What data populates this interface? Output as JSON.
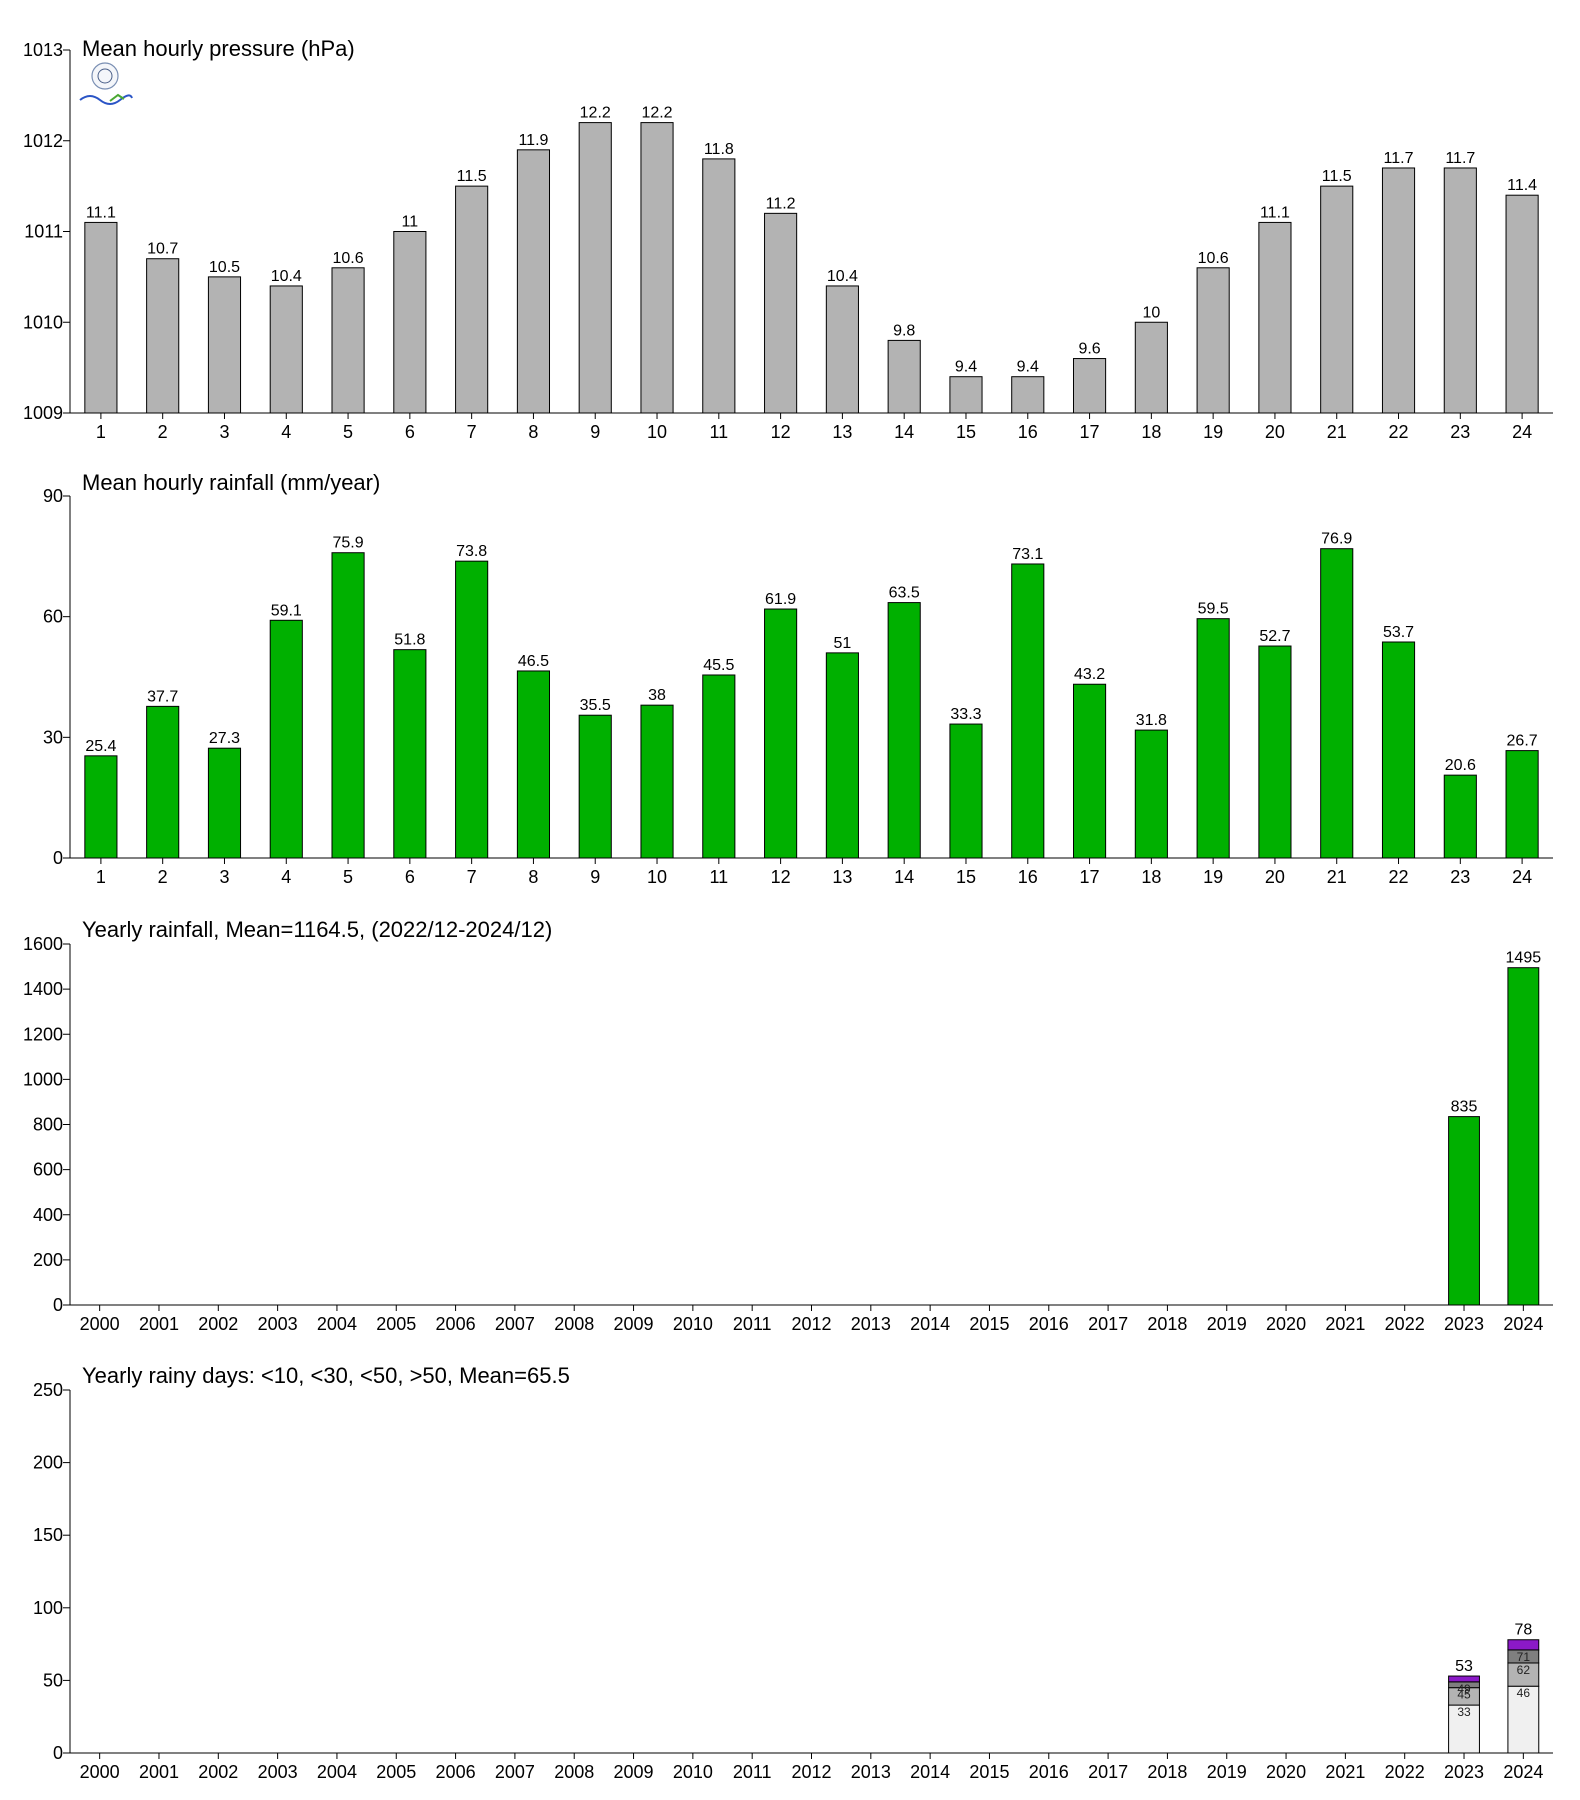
{
  "chart_data": [
    {
      "type": "bar",
      "title": "Mean hourly pressure (hPa)",
      "xlabel": "",
      "ylabel": "",
      "categories": [
        "1",
        "2",
        "3",
        "4",
        "5",
        "6",
        "7",
        "8",
        "9",
        "10",
        "11",
        "12",
        "13",
        "14",
        "15",
        "16",
        "17",
        "18",
        "19",
        "20",
        "21",
        "22",
        "23",
        "24"
      ],
      "values": [
        1011.1,
        1010.7,
        1010.5,
        1010.4,
        1010.6,
        1011,
        1011.5,
        1011.9,
        1012.2,
        1012.2,
        1011.8,
        1011.2,
        1010.4,
        1009.8,
        1009.4,
        1009.4,
        1009.6,
        1010,
        1010.6,
        1011.1,
        1011.5,
        1011.7,
        1011.7,
        1011.4
      ],
      "labels": [
        "11.1",
        "10.7",
        "10.5",
        "10.4",
        "10.6",
        "11",
        "11.5",
        "11.9",
        "12.2",
        "12.2",
        "11.8",
        "11.2",
        "10.4",
        "9.8",
        "9.4",
        "9.4",
        "9.6",
        "10",
        "10.6",
        "11.1",
        "11.5",
        "11.7",
        "11.7",
        "11.4"
      ],
      "ylim": [
        1009,
        1013
      ],
      "yticks": [
        "1009",
        "1010",
        "1011",
        "1012",
        "1013"
      ],
      "grid": false,
      "color": "#b3b3b3"
    },
    {
      "type": "bar",
      "title": "Mean hourly rainfall (mm/year)",
      "xlabel": "",
      "ylabel": "",
      "categories": [
        "1",
        "2",
        "3",
        "4",
        "5",
        "6",
        "7",
        "8",
        "9",
        "10",
        "11",
        "12",
        "13",
        "14",
        "15",
        "16",
        "17",
        "18",
        "19",
        "20",
        "21",
        "22",
        "23",
        "24"
      ],
      "values": [
        25.4,
        37.7,
        27.3,
        59.1,
        75.9,
        51.8,
        73.8,
        46.5,
        35.5,
        38,
        45.5,
        61.9,
        51,
        63.5,
        33.3,
        73.1,
        43.2,
        31.8,
        59.5,
        52.7,
        76.9,
        53.7,
        20.6,
        26.7
      ],
      "labels": [
        "25.4",
        "37.7",
        "27.3",
        "59.1",
        "75.9",
        "51.8",
        "73.8",
        "46.5",
        "35.5",
        "38",
        "45.5",
        "61.9",
        "51",
        "63.5",
        "33.3",
        "73.1",
        "43.2",
        "31.8",
        "59.5",
        "52.7",
        "76.9",
        "53.7",
        "20.6",
        "26.7"
      ],
      "ylim": [
        0,
        90
      ],
      "yticks": [
        "0",
        "30",
        "60",
        "90"
      ],
      "grid": false,
      "color": "#00b000"
    },
    {
      "type": "bar",
      "title": "Yearly rainfall, Mean=1164.5, (2022/12-2024/12)",
      "xlabel": "",
      "ylabel": "",
      "categories": [
        "2000",
        "2001",
        "2002",
        "2003",
        "2004",
        "2005",
        "2006",
        "2007",
        "2008",
        "2009",
        "2010",
        "2011",
        "2012",
        "2013",
        "2014",
        "2015",
        "2016",
        "2017",
        "2018",
        "2019",
        "2020",
        "2021",
        "2022",
        "2023",
        "2024"
      ],
      "values": [
        null,
        null,
        null,
        null,
        null,
        null,
        null,
        null,
        null,
        null,
        null,
        null,
        null,
        null,
        null,
        null,
        null,
        null,
        null,
        null,
        null,
        null,
        null,
        835,
        1495
      ],
      "labels": [
        "",
        "",
        "",
        "",
        "",
        "",
        "",
        "",
        "",
        "",
        "",
        "",
        "",
        "",
        "",
        "",
        "",
        "",
        "",
        "",
        "",
        "",
        "",
        "835",
        "1495"
      ],
      "ylim": [
        0,
        1600
      ],
      "yticks": [
        "0",
        "200",
        "400",
        "600",
        "800",
        "1000",
        "1200",
        "1400",
        "1600"
      ],
      "grid": false,
      "color": "#00b000"
    },
    {
      "type": "bar",
      "stacked": true,
      "title": "Yearly rainy days: <10, <30, <50, >50, Mean=65.5",
      "xlabel": "",
      "ylabel": "",
      "categories": [
        "2000",
        "2001",
        "2002",
        "2003",
        "2004",
        "2005",
        "2006",
        "2007",
        "2008",
        "2009",
        "2010",
        "2011",
        "2012",
        "2013",
        "2014",
        "2015",
        "2016",
        "2017",
        "2018",
        "2019",
        "2020",
        "2021",
        "2022",
        "2023",
        "2024"
      ],
      "cumulative": [
        {
          "year": "2023",
          "levels": [
            33,
            45,
            49,
            53
          ],
          "labels": [
            "33",
            "45",
            "49",
            "53"
          ]
        },
        {
          "year": "2024",
          "levels": [
            46,
            62,
            71,
            78
          ],
          "labels": [
            "46",
            "62",
            "71",
            "78"
          ]
        }
      ],
      "segment_colors": [
        "#f0f0f0",
        "#b3b3b3",
        "#7f7f7f",
        "#8b19c8"
      ],
      "ylim": [
        0,
        250
      ],
      "yticks": [
        "0",
        "50",
        "100",
        "150",
        "200",
        "250"
      ],
      "grid": false
    }
  ]
}
